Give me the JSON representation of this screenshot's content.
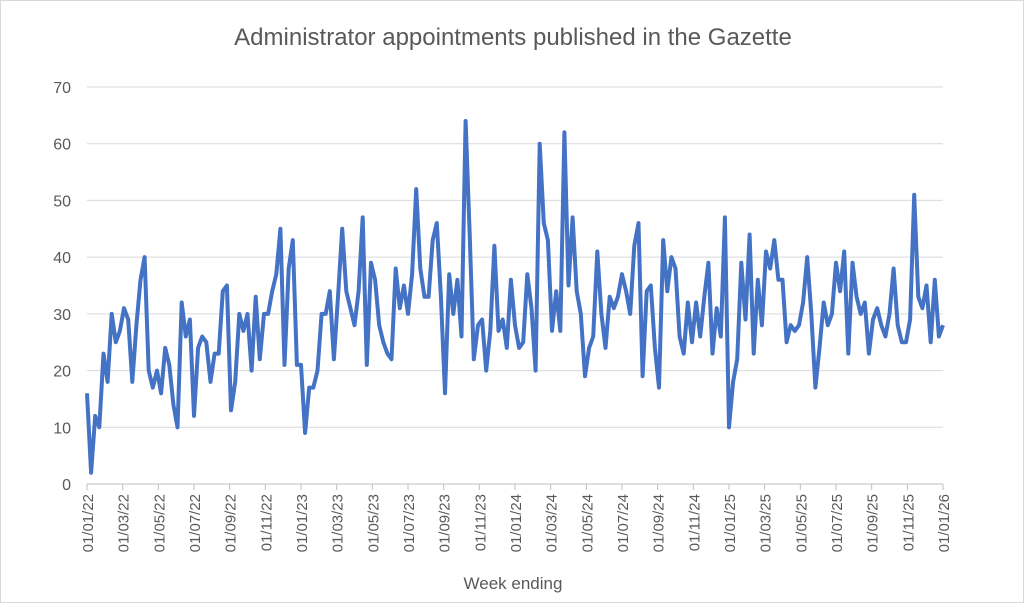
{
  "chart_data": {
    "type": "line",
    "title": "Administrator appointments published in the Gazette",
    "xlabel": "Week ending",
    "ylabel": "",
    "ylim": [
      0,
      70
    ],
    "yticks": [
      0,
      10,
      20,
      30,
      40,
      50,
      60,
      70
    ],
    "x_range": [
      "01/01/22",
      "01/01/26"
    ],
    "xticks": [
      "01/01/22",
      "01/03/22",
      "01/05/22",
      "01/07/22",
      "01/09/22",
      "01/11/22",
      "01/01/23",
      "01/03/23",
      "01/05/23",
      "01/07/23",
      "01/09/23",
      "01/11/23",
      "01/01/24",
      "01/03/24",
      "01/05/24",
      "01/07/24",
      "01/09/24",
      "01/11/24",
      "01/01/25",
      "01/03/25",
      "01/05/25",
      "01/07/25",
      "01/09/25",
      "01/11/25",
      "01/01/26"
    ],
    "grid": true,
    "legend": "none",
    "line_color": "#4472C4",
    "values": [
      16,
      2,
      12,
      10,
      23,
      18,
      30,
      25,
      27,
      31,
      29,
      18,
      28,
      36,
      40,
      20,
      17,
      20,
      16,
      24,
      21,
      14,
      10,
      32,
      26,
      29,
      12,
      24,
      26,
      25,
      18,
      23,
      23,
      34,
      35,
      13,
      18,
      30,
      27,
      30,
      20,
      33,
      22,
      30,
      30,
      34,
      37,
      45,
      21,
      38,
      43,
      21,
      21,
      9,
      17,
      17,
      20,
      30,
      30,
      34,
      22,
      33,
      45,
      34,
      31,
      28,
      34,
      47,
      21,
      39,
      36,
      28,
      25,
      23,
      22,
      38,
      31,
      35,
      30,
      37,
      52,
      38,
      33,
      33,
      43,
      46,
      33,
      16,
      37,
      30,
      36,
      26,
      64,
      44,
      22,
      28,
      29,
      20,
      27,
      42,
      27,
      29,
      24,
      36,
      28,
      24,
      25,
      37,
      31,
      20,
      60,
      46,
      43,
      27,
      34,
      27,
      62,
      35,
      47,
      34,
      30,
      19,
      24,
      26,
      41,
      30,
      24,
      33,
      31,
      33,
      37,
      34,
      30,
      42,
      46,
      19,
      34,
      35,
      24,
      17,
      43,
      34,
      40,
      38,
      26,
      23,
      32,
      25,
      32,
      26,
      33,
      39,
      23,
      31,
      26,
      47,
      10,
      18,
      22,
      39,
      29,
      44,
      23,
      36,
      28,
      41,
      38,
      43,
      36,
      36,
      25,
      28,
      27,
      28,
      32,
      40,
      30,
      17,
      24,
      32,
      28,
      30,
      39,
      34,
      41,
      23,
      39,
      33,
      30,
      32,
      23,
      29,
      31,
      28,
      26,
      30,
      38,
      28,
      25,
      25,
      29,
      51,
      33,
      31,
      35,
      25,
      36,
      26,
      28
    ]
  }
}
